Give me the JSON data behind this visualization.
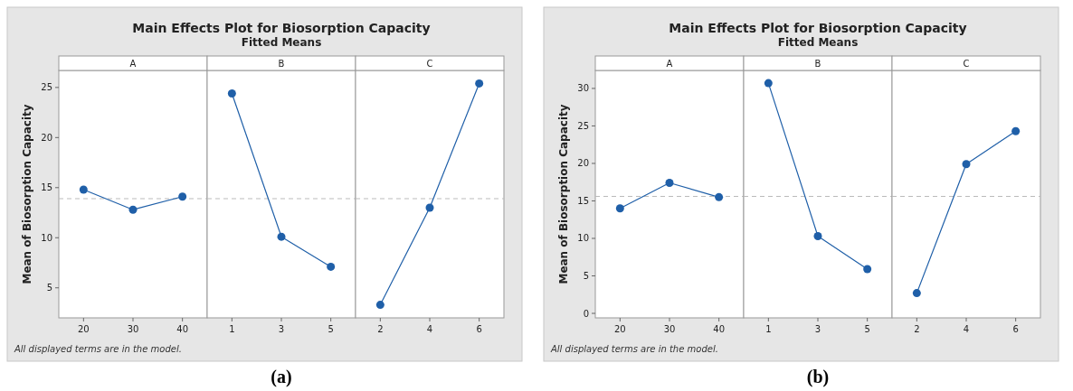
{
  "chart_data": [
    {
      "type": "line",
      "xlabel": "A",
      "ylabel": "Mean of Biosorption Capacity",
      "annotations": [
        "All displayed terms are in the model."
      ],
      "categories": [
        "20",
        "30",
        "40"
      ],
      "series": [
        {
          "color": "#1f5fa8",
          "values": [
            14.8,
            12.8,
            14.1
          ]
        }
      ],
      "ylim": [
        2,
        26.7
      ],
      "yticks": [
        5,
        10,
        15,
        20,
        25
      ],
      "ref_lines": [
        {
          "axis": "y",
          "value": 13.9,
          "color": "#bbbbbb",
          "line_style": "dashed"
        }
      ],
      "marker": "circle"
    },
    {
      "type": "line",
      "title": "Main Effects Plot for Biosorption Capacity",
      "subtitle": "Fitted Means",
      "annotations": [
        "(a)"
      ],
      "xlabel": "B",
      "categories": [
        "1",
        "3",
        "5"
      ],
      "series": [
        {
          "color": "#1f5fa8",
          "values": [
            24.4,
            10.1,
            7.1
          ]
        }
      ],
      "ylim": [
        2,
        26.7
      ],
      "ref_lines": [
        {
          "axis": "y",
          "value": 13.9,
          "color": "#bbbbbb",
          "line_style": "dashed"
        }
      ],
      "marker": "circle",
      "tick_labels": "x"
    },
    {
      "type": "line",
      "xlabel": "C",
      "categories": [
        "2",
        "4",
        "6"
      ],
      "series": [
        {
          "color": "#1f5fa8",
          "values": [
            3.3,
            13.0,
            25.4
          ]
        }
      ],
      "ylim": [
        2,
        26.7
      ],
      "ref_lines": [
        {
          "axis": "y",
          "value": 13.9,
          "color": "#bbbbbb",
          "line_style": "dashed"
        }
      ],
      "marker": "circle",
      "tick_labels": "x"
    },
    {
      "type": "line",
      "xlabel": "A",
      "ylabel": "Mean of Biosorption Capacity",
      "annotations": [
        "All displayed terms are in the model."
      ],
      "categories": [
        "20",
        "30",
        "40"
      ],
      "series": [
        {
          "color": "#1f5fa8",
          "values": [
            14.0,
            17.4,
            15.5
          ]
        }
      ],
      "ylim": [
        -0.6,
        32.4
      ],
      "yticks": [
        0,
        5,
        10,
        15,
        20,
        25,
        30
      ],
      "ref_lines": [
        {
          "axis": "y",
          "value": 15.6,
          "color": "#bbbbbb",
          "line_style": "dashed"
        }
      ],
      "marker": "circle"
    },
    {
      "type": "line",
      "title": "Main Effects Plot for Biosorption Capacity",
      "subtitle": "Fitted Means",
      "annotations": [
        "(b)"
      ],
      "xlabel": "B",
      "categories": [
        "1",
        "3",
        "5"
      ],
      "series": [
        {
          "color": "#1f5fa8",
          "values": [
            30.7,
            10.3,
            5.9
          ]
        }
      ],
      "ylim": [
        -0.6,
        32.4
      ],
      "ref_lines": [
        {
          "axis": "y",
          "value": 15.6,
          "color": "#bbbbbb",
          "line_style": "dashed"
        }
      ],
      "marker": "circle",
      "tick_labels": "x"
    },
    {
      "type": "line",
      "xlabel": "C",
      "categories": [
        "2",
        "4",
        "6"
      ],
      "series": [
        {
          "color": "#1f5fa8",
          "values": [
            2.7,
            19.9,
            24.3
          ]
        }
      ],
      "ylim": [
        -0.6,
        32.4
      ],
      "ref_lines": [
        {
          "axis": "y",
          "value": 15.6,
          "color": "#bbbbbb",
          "line_style": "dashed"
        }
      ],
      "marker": "circle",
      "tick_labels": "x"
    }
  ]
}
